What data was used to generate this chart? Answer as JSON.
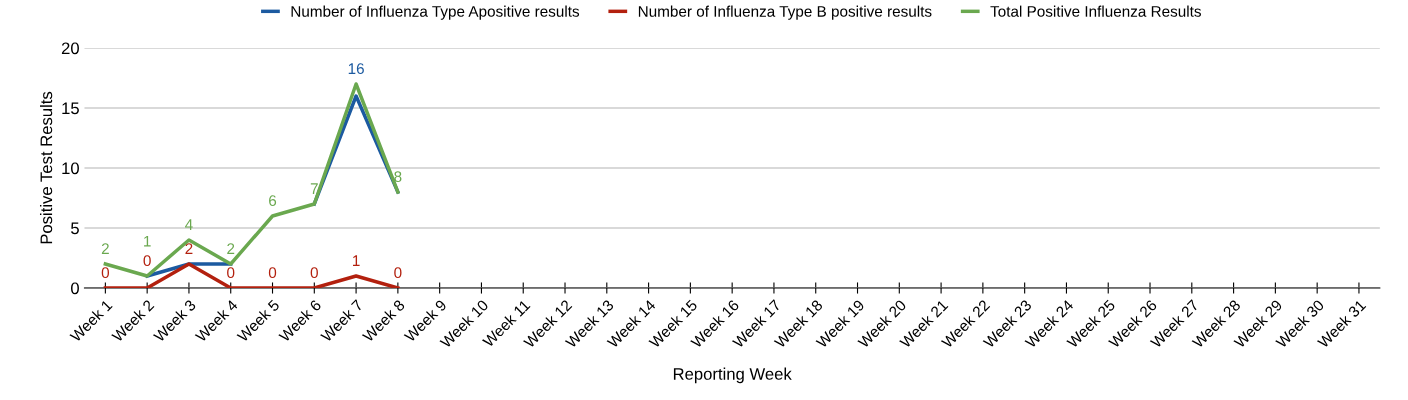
{
  "chart_data": {
    "type": "line",
    "xlabel": "Reporting Week",
    "ylabel": "Positive Test Results",
    "categories": [
      "Week 1",
      "Week 2",
      "Week 3",
      "Week 4",
      "Week 5",
      "Week 6",
      "Week 7",
      "Week 8",
      "Week 9",
      "Week 10",
      "Week 11",
      "Week 12",
      "Week 13",
      "Week 14",
      "Week 15",
      "Week 16",
      "Week 17",
      "Week 18",
      "Week 19",
      "Week 20",
      "Week 21",
      "Week 22",
      "Week 23",
      "Week 24",
      "Week 25",
      "Week 26",
      "Week 27",
      "Week 28",
      "Week 29",
      "Week 30",
      "Week 31"
    ],
    "series": [
      {
        "name": "Number of Influenza Type Apositive results",
        "color": "#1c5aa0",
        "values": [
          null,
          1,
          2,
          2,
          null,
          7,
          16,
          8,
          null,
          null,
          null,
          null,
          null,
          null,
          null,
          null,
          null,
          null,
          null,
          null,
          null,
          null,
          null,
          null,
          null,
          null,
          null,
          null,
          null,
          null,
          null
        ],
        "value_labels": [
          null,
          null,
          null,
          null,
          null,
          null,
          "16",
          null,
          null,
          null,
          null,
          null,
          null,
          null,
          null,
          null,
          null,
          null,
          null,
          null,
          null,
          null,
          null,
          null,
          null,
          null,
          null,
          null,
          null,
          null,
          null
        ]
      },
      {
        "name": "Number of Influenza Type B positive results",
        "color": "#b3200e",
        "values": [
          0,
          0,
          2,
          0,
          0,
          0,
          1,
          0,
          null,
          null,
          null,
          null,
          null,
          null,
          null,
          null,
          null,
          null,
          null,
          null,
          null,
          null,
          null,
          null,
          null,
          null,
          null,
          null,
          null,
          null,
          null
        ],
        "value_labels": [
          "0",
          "0",
          "2",
          "0",
          "0",
          "0",
          "1",
          "0",
          null,
          null,
          null,
          null,
          null,
          null,
          null,
          null,
          null,
          null,
          null,
          null,
          null,
          null,
          null,
          null,
          null,
          null,
          null,
          null,
          null,
          null,
          null
        ]
      },
      {
        "name": "Total Positive Influenza Results",
        "color": "#6aa84f",
        "values": [
          2,
          1,
          4,
          2,
          6,
          7,
          17,
          8,
          null,
          null,
          null,
          null,
          null,
          null,
          null,
          null,
          null,
          null,
          null,
          null,
          null,
          null,
          null,
          null,
          null,
          null,
          null,
          null,
          null,
          null,
          null
        ],
        "value_labels": [
          "2",
          "1",
          "4",
          "2",
          "6",
          "7",
          null,
          "8",
          null,
          null,
          null,
          null,
          null,
          null,
          null,
          null,
          null,
          null,
          null,
          null,
          null,
          null,
          null,
          null,
          null,
          null,
          null,
          null,
          null,
          null,
          null
        ]
      }
    ],
    "ylim": [
      0,
      20
    ],
    "yticks": [
      0,
      5,
      10,
      15,
      20
    ],
    "grid": "y",
    "legend": "top",
    "marker": "none",
    "line_style": "solid"
  }
}
